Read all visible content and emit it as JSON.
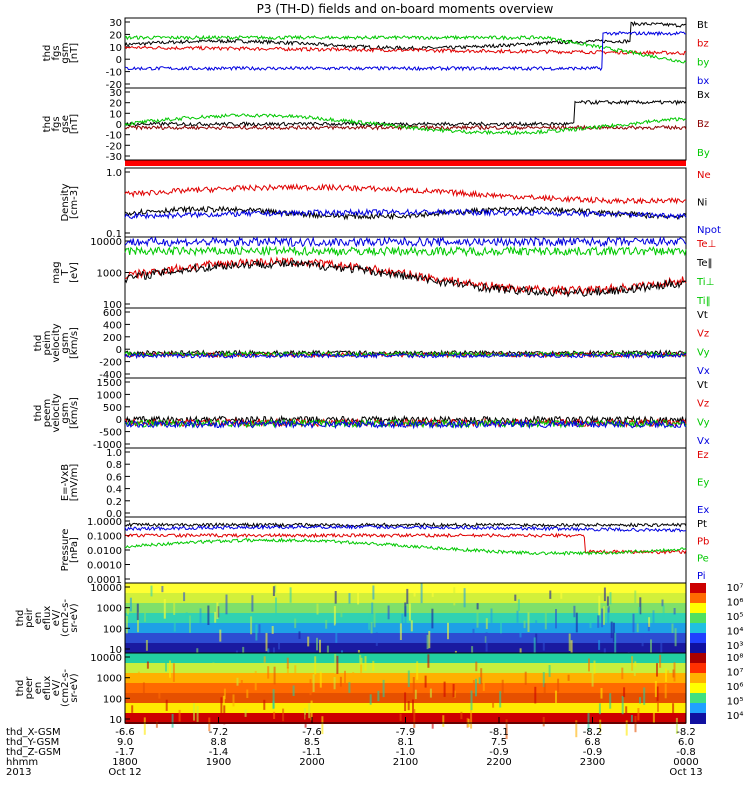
{
  "title": "P3 (TH-D) fields and on-board moments overview",
  "chart_data": {
    "type": "line",
    "title": "P3 (TH-D) fields and on-board moments overview",
    "panels": [
      {
        "id": "fgs_gsm",
        "ylabel": [
          "thd",
          "fgs",
          "gsm",
          "[nT]"
        ],
        "yticks": [
          "30",
          "20",
          "10",
          "0",
          "-10",
          "-20"
        ],
        "legend": [
          {
            "label": "Bt",
            "color": "#000000"
          },
          {
            "label": "bz",
            "color": "#e00000"
          },
          {
            "label": "by",
            "color": "#00c800"
          },
          {
            "label": "bx",
            "color": "#0000e0"
          }
        ]
      },
      {
        "id": "fgs_gse",
        "ylabel": [
          "thd",
          "fgs",
          "gse",
          "[nT]"
        ],
        "yticks": [
          "30",
          "20",
          "10",
          "0",
          "-10",
          "-20",
          "-30"
        ],
        "legend": [
          {
            "label": "Bx",
            "color": "#000000"
          },
          {
            "label": "Bz",
            "color": "#8b0000"
          },
          {
            "label": "By",
            "color": "#00c800"
          }
        ]
      },
      {
        "id": "density",
        "ylabel": [
          "Density",
          "[cm-3]"
        ],
        "yticks": [
          "1.0",
          "0.1"
        ],
        "legend": [
          {
            "label": "Ne",
            "color": "#e00000"
          },
          {
            "label": "Ni",
            "color": "#000000"
          },
          {
            "label": "Npot",
            "color": "#0000e0"
          }
        ]
      },
      {
        "id": "temp",
        "ylabel": [
          "mag",
          "T",
          "[eV]"
        ],
        "yticks": [
          "10000",
          "1000",
          "100"
        ],
        "legend": [
          {
            "label": "Te⊥",
            "color": "#e00000"
          },
          {
            "label": "Te‖",
            "color": "#000000"
          },
          {
            "label": "Ti⊥",
            "color": "#00c800"
          },
          {
            "label": "Ti‖",
            "color": "#00c800"
          }
        ]
      },
      {
        "id": "peim_vel",
        "ylabel": [
          "thd",
          "peim",
          "velocity",
          "gsm",
          "[km/s]"
        ],
        "yticks": [
          "600",
          "400",
          "200",
          "0",
          "-200",
          "-400"
        ],
        "legend": [
          {
            "label": "Vt",
            "color": "#000000"
          },
          {
            "label": "Vz",
            "color": "#e00000"
          },
          {
            "label": "Vy",
            "color": "#00c800"
          },
          {
            "label": "Vx",
            "color": "#0000e0"
          }
        ]
      },
      {
        "id": "peem_vel",
        "ylabel": [
          "thd",
          "peem",
          "velocity",
          "gsm",
          "[km/s]"
        ],
        "yticks": [
          "1500",
          "1000",
          "500",
          "0",
          "-500",
          "-1000"
        ],
        "legend": [
          {
            "label": "Vt",
            "color": "#000000"
          },
          {
            "label": "Vz",
            "color": "#e00000"
          },
          {
            "label": "Vy",
            "color": "#00c800"
          },
          {
            "label": "Vx",
            "color": "#0000e0"
          }
        ]
      },
      {
        "id": "efield",
        "ylabel": [
          "E=-VxB",
          "[mV/m]"
        ],
        "yticks": [
          "1.0",
          "0.8",
          "0.6",
          "0.4",
          "0.2",
          "0.0"
        ],
        "legend": [
          {
            "label": "Ez",
            "color": "#e00000"
          },
          {
            "label": "Ey",
            "color": "#00c800"
          },
          {
            "label": "Ex",
            "color": "#0000e0"
          }
        ]
      },
      {
        "id": "pressure",
        "ylabel": [
          "Pressure",
          "[nPa]"
        ],
        "yticks": [
          "1.0000",
          "0.1000",
          "0.0100",
          "0.0010",
          "0.0001"
        ],
        "legend": [
          {
            "label": "Pt",
            "color": "#000000"
          },
          {
            "label": "Pb",
            "color": "#e00000"
          },
          {
            "label": "Pe",
            "color": "#00c800"
          },
          {
            "label": "Pi",
            "color": "#0000e0"
          }
        ]
      },
      {
        "id": "peir_spec",
        "ylabel": [
          "thd",
          "peir",
          "en",
          "eflux",
          "eV/",
          "(cm2-s-",
          "sr-eV)"
        ],
        "yticks": [
          "10000",
          "1000",
          "100",
          "10"
        ],
        "cbar": [
          "10⁷",
          "10⁶",
          "10⁵",
          "10⁴",
          "10³"
        ]
      },
      {
        "id": "peer_spec",
        "ylabel": [
          "thd",
          "peer",
          "en",
          "eflux",
          "eV/",
          "(cm2-s-",
          "sr-eV)"
        ],
        "yticks": [
          "10000",
          "1000",
          "100",
          "10"
        ],
        "cbar": [
          "10⁸",
          "10⁷",
          "10⁶",
          "10⁵",
          "10⁴"
        ]
      }
    ],
    "x_axis": {
      "row_labels": [
        "thd_X-GSM",
        "thd_Y-GSM",
        "thd_Z-GSM",
        "hhmm",
        "2013"
      ],
      "columns": [
        [
          "-6.6",
          "9.0",
          "-1.7",
          "1800",
          "Oct 12"
        ],
        [
          "-7.2",
          "8.8",
          "-1.4",
          "1900",
          ""
        ],
        [
          "-7.6",
          "8.5",
          "-1.1",
          "2000",
          ""
        ],
        [
          "-7.9",
          "8.1",
          "-1.0",
          "2100",
          ""
        ],
        [
          "-8.1",
          "7.5",
          "-0.9",
          "2200",
          ""
        ],
        [
          "-8.2",
          "6.8",
          "-0.9",
          "2300",
          ""
        ],
        [
          "-8.2",
          "6.0",
          "-0.8",
          "0000",
          "Oct 13"
        ]
      ]
    }
  }
}
